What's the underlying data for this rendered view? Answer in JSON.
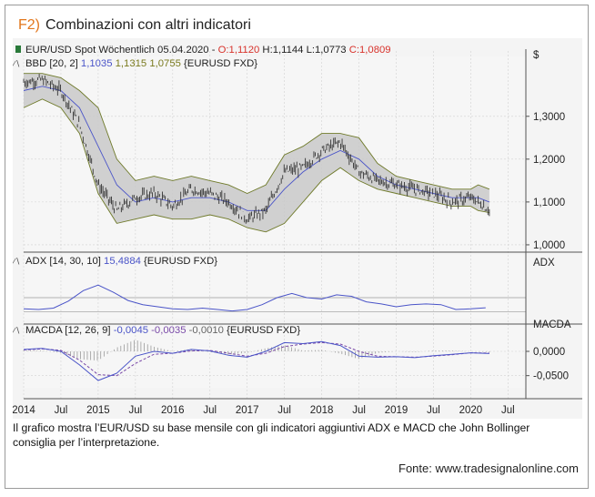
{
  "figure": {
    "number": "F2)",
    "title": "Combinazioni con altri indicatori",
    "caption": "Il grafico mostra l’EUR/USD su base mensile con gli indicatori aggiuntivi ADX e MACD che John Bollinger consiglia per l’interpretazione.",
    "source": "Fonte: www.tradesignalonline.com"
  },
  "colors": {
    "title_number": "#e2761b",
    "bollinger_fill": "#c9c9c9",
    "bollinger_edge": "#6f7a2a",
    "blue_line": "#4a54c8",
    "purple_line": "#7a4aa8",
    "red_text": "#d8322b",
    "green_marker": "#2a7a3a",
    "olive_text": "#7a7a1e",
    "candle": "#333333",
    "grid": "#d2d2d2"
  },
  "chart_data": [
    {
      "type": "line",
      "panel": "price",
      "legend": {
        "instrument": "EUR/USD Spot Wöchentlich",
        "date": "05.04.2020",
        "open": "O:1,1120",
        "high": "H:1,1144",
        "low": "L:1,0773",
        "close": "C:1,0809",
        "bands_name": "BBD [20, 2]",
        "bands_mid": "1,1035",
        "bands_upper": "1,1315",
        "bands_lower": "1,0755",
        "bands_source": "{EURUSD FXD}"
      },
      "ylabel": "$",
      "yticks": [
        "1,3000",
        "1,2000",
        "1,1000",
        "1,0000"
      ],
      "ytick_values": [
        1.3,
        1.2,
        1.1,
        1.0
      ],
      "ylim": [
        0.985,
        1.41
      ],
      "x": [
        2014.0,
        2014.25,
        2014.5,
        2014.75,
        2015.0,
        2015.25,
        2015.5,
        2015.75,
        2016.0,
        2016.25,
        2016.5,
        2016.75,
        2017.0,
        2017.25,
        2017.5,
        2017.75,
        2018.0,
        2018.25,
        2018.5,
        2018.75,
        2019.0,
        2019.25,
        2019.5,
        2019.75,
        2020.0,
        2020.1,
        2020.25
      ],
      "series": [
        {
          "role": "price",
          "values": [
            1.38,
            1.385,
            1.36,
            1.28,
            1.14,
            1.08,
            1.11,
            1.12,
            1.09,
            1.13,
            1.12,
            1.1,
            1.06,
            1.08,
            1.17,
            1.18,
            1.22,
            1.24,
            1.17,
            1.15,
            1.14,
            1.13,
            1.12,
            1.1,
            1.11,
            1.1,
            1.08
          ]
        },
        {
          "role": "bollinger_upper",
          "values": [
            1.4,
            1.4,
            1.39,
            1.36,
            1.32,
            1.2,
            1.15,
            1.16,
            1.15,
            1.16,
            1.15,
            1.14,
            1.12,
            1.14,
            1.21,
            1.23,
            1.26,
            1.26,
            1.25,
            1.19,
            1.16,
            1.15,
            1.14,
            1.13,
            1.13,
            1.14,
            1.13
          ]
        },
        {
          "role": "bollinger_middle",
          "values": [
            1.36,
            1.37,
            1.36,
            1.32,
            1.23,
            1.14,
            1.1,
            1.11,
            1.1,
            1.11,
            1.11,
            1.1,
            1.08,
            1.08,
            1.13,
            1.17,
            1.2,
            1.22,
            1.2,
            1.16,
            1.14,
            1.13,
            1.12,
            1.11,
            1.11,
            1.11,
            1.1
          ]
        },
        {
          "role": "bollinger_lower",
          "values": [
            1.32,
            1.34,
            1.32,
            1.26,
            1.12,
            1.05,
            1.06,
            1.07,
            1.06,
            1.06,
            1.07,
            1.06,
            1.04,
            1.03,
            1.05,
            1.1,
            1.15,
            1.18,
            1.15,
            1.13,
            1.12,
            1.11,
            1.1,
            1.09,
            1.09,
            1.08,
            1.075
          ]
        }
      ]
    },
    {
      "type": "line",
      "panel": "adx",
      "legend": {
        "name": "ADX [14, 30, 10]",
        "value": "15,4884",
        "source": "{EURUSD FXD}"
      },
      "ylabel": "ADX",
      "ylim": [
        0,
        60
      ],
      "reference_lines": [
        10,
        30
      ],
      "x": [
        2014.0,
        2014.2,
        2014.4,
        2014.6,
        2014.8,
        2015.0,
        2015.2,
        2015.4,
        2015.6,
        2015.8,
        2016.0,
        2016.2,
        2016.4,
        2016.6,
        2016.8,
        2017.0,
        2017.2,
        2017.4,
        2017.6,
        2017.8,
        2018.0,
        2018.2,
        2018.4,
        2018.6,
        2018.8,
        2019.0,
        2019.2,
        2019.4,
        2019.6,
        2019.8,
        2020.0,
        2020.2
      ],
      "series": [
        {
          "role": "adx",
          "values": [
            14,
            13,
            15,
            25,
            40,
            48,
            38,
            26,
            20,
            17,
            14,
            13,
            15,
            13,
            11,
            13,
            20,
            30,
            36,
            30,
            28,
            34,
            32,
            24,
            21,
            17,
            20,
            21,
            20,
            13,
            14,
            15.5
          ]
        }
      ]
    },
    {
      "type": "line",
      "panel": "macd",
      "legend": {
        "name": "MACDA [12, 26, 9]",
        "macd": "-0,0045",
        "signal": "-0,0035",
        "histogram": "-0,0010",
        "source": "{EURUSD FXD}"
      },
      "ylabel": "MACDA",
      "yticks": [
        "0,0000",
        "-0,0500"
      ],
      "ytick_values": [
        0.0,
        -0.05
      ],
      "ylim": [
        -0.075,
        0.03
      ],
      "x": [
        2014.0,
        2014.25,
        2014.5,
        2014.75,
        2015.0,
        2015.25,
        2015.5,
        2015.75,
        2016.0,
        2016.25,
        2016.5,
        2016.75,
        2017.0,
        2017.25,
        2017.5,
        2017.75,
        2018.0,
        2018.25,
        2018.5,
        2018.75,
        2019.0,
        2019.25,
        2019.5,
        2019.75,
        2020.0,
        2020.25
      ],
      "series": [
        {
          "role": "macd",
          "values": [
            0.004,
            0.006,
            0.0,
            -0.028,
            -0.06,
            -0.045,
            -0.01,
            0.0,
            -0.004,
            0.004,
            0.001,
            -0.008,
            -0.012,
            0.0,
            0.018,
            0.016,
            0.02,
            0.012,
            -0.01,
            -0.012,
            -0.011,
            -0.013,
            -0.009,
            -0.006,
            -0.003,
            -0.0045
          ]
        },
        {
          "role": "signal",
          "values": [
            0.003,
            0.005,
            0.002,
            -0.018,
            -0.048,
            -0.05,
            -0.025,
            -0.006,
            -0.004,
            0.001,
            0.002,
            -0.004,
            -0.01,
            -0.004,
            0.01,
            0.015,
            0.018,
            0.015,
            0.0,
            -0.01,
            -0.011,
            -0.012,
            -0.01,
            -0.007,
            -0.003,
            -0.0035
          ]
        }
      ]
    }
  ],
  "x_axis": {
    "labels": [
      "2014",
      "Jul",
      "2015",
      "Jul",
      "2016",
      "Jul",
      "2017",
      "Jul",
      "2018",
      "Jul",
      "2019",
      "Jul",
      "2020",
      "Jul"
    ],
    "values": [
      2014.0,
      2014.5,
      2015.0,
      2015.5,
      2016.0,
      2016.5,
      2017.0,
      2017.5,
      2018.0,
      2018.5,
      2019.0,
      2019.5,
      2020.0,
      2020.5
    ],
    "range": [
      2014.0,
      2020.74
    ]
  }
}
